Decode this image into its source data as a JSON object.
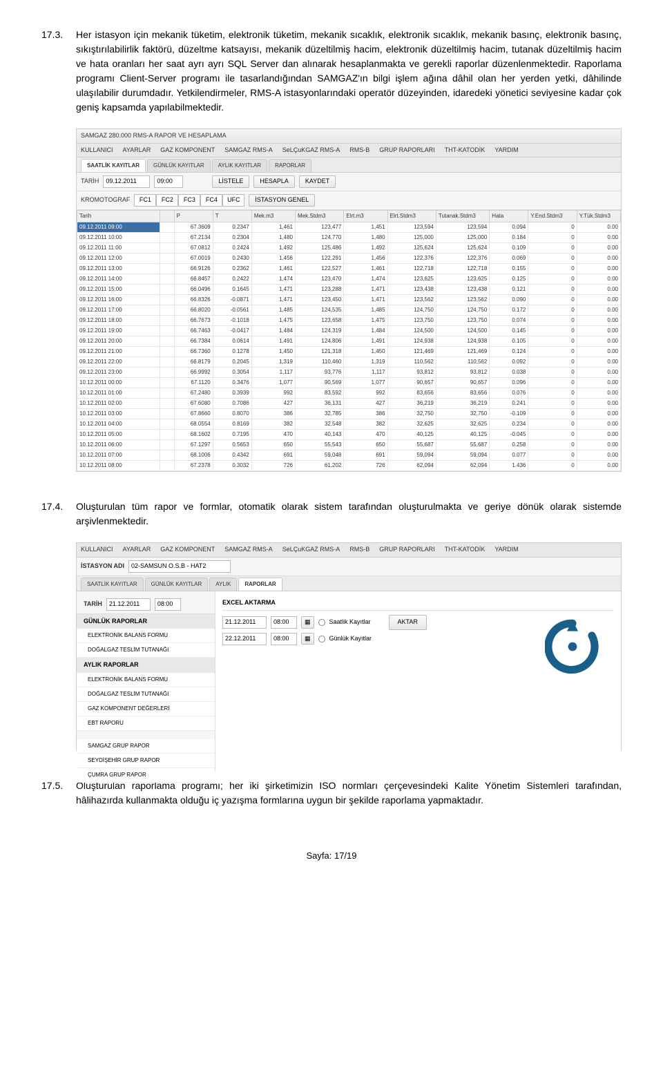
{
  "p173": {
    "num": "17.3.",
    "text": "Her istasyon için mekanik tüketim, elektronik tüketim, mekanik sıcaklık, elektronik sıcaklık, mekanik basınç, elektronik basınç, sıkıştırılabilirlik faktörü, düzeltme katsayısı, mekanik düzeltilmiş hacim, elektronik düzeltilmiş hacim, tutanak düzeltilmiş hacim ve hata oranları her saat ayrı ayrı SQL Server dan alınarak hesaplanmakta ve gerekli raporlar düzenlenmektedir. Raporlama programı Client-Server programı ile tasarlandığından SAMGAZ'ın bilgi işlem ağına dâhil olan her yerden yetki, dâhilinde ulaşılabilir durumdadır. Yetkilendirmeler, RMS-A istasyonlarındaki operatör düzeyinden, idaredeki yönetici seviyesine kadar çok geniş kapsamda yapılabilmektedir."
  },
  "p174": {
    "num": "17.4.",
    "text": "Oluşturulan tüm rapor ve formlar, otomatik olarak sistem tarafından oluşturulmakta ve geriye dönük olarak sistemde arşivlenmektedir."
  },
  "p175": {
    "num": "17.5.",
    "text": "Oluşturulan raporlama programı; her iki şirketimizin ISO normları çerçevesindeki Kalite Yönetim Sistemleri tarafından, hâlihazırda kullanmakta olduğu iç yazışma formlarına uygun bir şekilde raporlama yapmaktadır."
  },
  "app1": {
    "title": "SAMGAZ 280.000 RMS-A  RAPOR VE HESAPLAMA",
    "menus": [
      "KULLANICI",
      "AYARLAR",
      "GAZ KOMPONENT",
      "SAMGAZ RMS-A",
      "SeLÇuKGAZ RMS-A",
      "RMS-B",
      "GRUP RAPORLARI",
      "THT-KATODİK",
      "YARDIM"
    ],
    "tabs": [
      "SAATLİK KAYITLAR",
      "GÜNLÜK KAYITLAR",
      "AYLIK KAYITLAR",
      "RAPORLAR"
    ],
    "activeTab": 0,
    "tarihLabel": "TARİH",
    "tarihDate": "09.12.2011",
    "tarihTime": "09:00",
    "btnListele": "LİSTELE",
    "btnHesapla": "HESAPLA",
    "btnKaydet": "KAYDET",
    "kromLabel": "KROMOTOGRAF",
    "kromCols": [
      "FC1",
      "FC2",
      "FC3",
      "FC4",
      "UFC"
    ],
    "kromBtn": "İSTASYON GENEL",
    "columns": [
      "Tarih",
      "",
      "P",
      "T",
      "Mek.m3",
      "Mek.Stdm3",
      "Elrt.m3",
      "Elrt.Stdm3",
      "Tutanak.Stdm3",
      "Hata",
      "Y.End.Stdm3",
      "Y.Tük.Stdm3"
    ],
    "rows": [
      [
        "09.12.2011 09:00",
        "",
        "67.3609",
        "0.2347",
        "1,461",
        "123,477",
        "1,451",
        "123,594",
        "123,594",
        "0.094",
        "0",
        "0.00"
      ],
      [
        "09.12.2011 10:00",
        "",
        "67.2134",
        "0.2304",
        "1,480",
        "124,770",
        "1,480",
        "125,000",
        "125,000",
        "0.184",
        "0",
        "0.00"
      ],
      [
        "09.12.2011 11:00",
        "",
        "67.0812",
        "0.2424",
        "1,492",
        "125,486",
        "1,492",
        "125,624",
        "125,624",
        "0.109",
        "0",
        "0.00"
      ],
      [
        "09.12.2011 12:00",
        "",
        "67.0019",
        "0.2430",
        "1,456",
        "122,291",
        "1,456",
        "122,376",
        "122,376",
        "0.069",
        "0",
        "0.00"
      ],
      [
        "09.12.2011 13:00",
        "",
        "66.9126",
        "0.2362",
        "1,461",
        "122,527",
        "1,461",
        "122,718",
        "122,718",
        "0.155",
        "0",
        "0.00"
      ],
      [
        "09.12.2011 14:00",
        "",
        "66.8457",
        "0.2422",
        "1,474",
        "123,470",
        "1,474",
        "123,625",
        "123,625",
        "0.125",
        "0",
        "0.00"
      ],
      [
        "09.12.2011 15:00",
        "",
        "66.0496",
        "0.1645",
        "1,471",
        "123,288",
        "1,471",
        "123,438",
        "123,438",
        "0.121",
        "0",
        "0.00"
      ],
      [
        "09.12.2011 16:00",
        "",
        "66.8326",
        "-0.0871",
        "1,471",
        "123,450",
        "1,471",
        "123,562",
        "123,562",
        "0.090",
        "0",
        "0.00"
      ],
      [
        "09.12.2011 17:00",
        "",
        "66.8020",
        "-0.0561",
        "1,485",
        "124,535",
        "1,485",
        "124,750",
        "124,750",
        "0.172",
        "0",
        "0.00"
      ],
      [
        "09.12.2011 18:00",
        "",
        "66.7673",
        "-0.1018",
        "1,475",
        "123,658",
        "1,475",
        "123,750",
        "123,750",
        "0.074",
        "0",
        "0.00"
      ],
      [
        "09.12.2011 19:00",
        "",
        "66.7463",
        "-0.0417",
        "1,484",
        "124,319",
        "1,484",
        "124,500",
        "124,500",
        "0.145",
        "0",
        "0.00"
      ],
      [
        "09.12.2011 20:00",
        "",
        "66.7384",
        "0.0614",
        "1,491",
        "124,806",
        "1,491",
        "124,938",
        "124,938",
        "0.105",
        "0",
        "0.00"
      ],
      [
        "09.12.2011 21:00",
        "",
        "66.7360",
        "0.1278",
        "1,450",
        "121,318",
        "1,450",
        "121,469",
        "121,469",
        "0.124",
        "0",
        "0.00"
      ],
      [
        "09.12.2011 22:00",
        "",
        "66.8179",
        "0.2045",
        "1,319",
        "110,460",
        "1,319",
        "110,562",
        "110,562",
        "0.092",
        "0",
        "0.00"
      ],
      [
        "09.12.2011 23:00",
        "",
        "66.9992",
        "0.3054",
        "1,117",
        "93,776",
        "1,117",
        "93,812",
        "93,812",
        "0.038",
        "0",
        "0.00"
      ],
      [
        "10.12.2011 00:00",
        "",
        "67.1120",
        "0.3476",
        "1,077",
        "90,569",
        "1,077",
        "90,657",
        "90,657",
        "0.096",
        "0",
        "0.00"
      ],
      [
        "10.12.2011 01:00",
        "",
        "67.2480",
        "0.3939",
        "992",
        "83,592",
        "992",
        "83,656",
        "83,656",
        "0.076",
        "0",
        "0.00"
      ],
      [
        "10.12.2011 02:00",
        "",
        "67.6080",
        "0.7086",
        "427",
        "36,131",
        "427",
        "36,219",
        "36,219",
        "0.241",
        "0",
        "0.00"
      ],
      [
        "10.12.2011 03:00",
        "",
        "67.8660",
        "0.8070",
        "386",
        "32,785",
        "386",
        "32,750",
        "32,750",
        "-0.109",
        "0",
        "0.00"
      ],
      [
        "10.12.2011 04:00",
        "",
        "68.0554",
        "0.8169",
        "382",
        "32,548",
        "382",
        "32,625",
        "32,625",
        "0.234",
        "0",
        "0.00"
      ],
      [
        "10.12.2011 05:00",
        "",
        "68.1602",
        "0.7195",
        "470",
        "40,143",
        "470",
        "40,125",
        "40,125",
        "-0.045",
        "0",
        "0.00"
      ],
      [
        "10.12.2011 06:00",
        "",
        "67.1297",
        "0.5653",
        "650",
        "55,543",
        "650",
        "55,687",
        "55,687",
        "0.258",
        "0",
        "0.00"
      ],
      [
        "10.12.2011 07:00",
        "",
        "68.1006",
        "0.4342",
        "691",
        "59,048",
        "691",
        "59,094",
        "59,094",
        "0.077",
        "0",
        "0.00"
      ],
      [
        "10.12.2011 08:00",
        "",
        "67.2378",
        "0.3032",
        "726",
        "61,202",
        "726",
        "62,094",
        "62,094",
        "1.436",
        "0",
        "0.00"
      ]
    ]
  },
  "app2": {
    "menus": [
      "KULLANICI",
      "AYARLAR",
      "GAZ KOMPONENT",
      "SAMGAZ RMS-A",
      "SeLÇuKGAZ RMS-A",
      "RMS-B",
      "GRUP RAPORLARI",
      "THT-KATODİK",
      "YARDIM"
    ],
    "istasyonLabel": "İSTASYON ADI",
    "istasyon": "02-SAMSUN O.S.B - HAT2",
    "tabs": [
      "SAATLİK KAYITLAR",
      "GÜNLÜK KAYITLAR",
      "AYLIK",
      "RAPORLAR"
    ],
    "activeTab": 3,
    "tarihLabel": "TARİH",
    "tarihDate": "21.12.2011",
    "tarihTime": "08:00",
    "excelLabel": "EXCEL AKTARMA",
    "row1date": "21.12.2011",
    "row1time": "08:00",
    "opt1": "Saatlik Kayıtlar",
    "row2date": "22.12.2011",
    "row2time": "08:00",
    "opt2": "Günlük Kayıtlar",
    "btnAktar": "AKTAR",
    "grp1": "GÜNLÜK RAPORLAR",
    "g1i1": "ELEKTRONİK BALANS FORMU",
    "g1i2": "DOĞALGAZ TESLİM TUTANAĞI",
    "grp2": "AYLIK RAPORLAR",
    "g2i1": "ELEKTRONİK BALANS FORMU",
    "g2i2": "DOĞALGAZ TESLİM TUTANAĞI",
    "g2i3": "GAZ KOMPONENT DEĞERLERİ",
    "g2i4": "EBT RAPORU",
    "g3i1": "SAMGAZ GRUP RAPOR",
    "g3i2": "SEYDİŞEHİR GRUP RAPOR",
    "g3i3": "ÇUMRA GRUP RAPOR"
  },
  "footer": "Sayfa: 17/19"
}
